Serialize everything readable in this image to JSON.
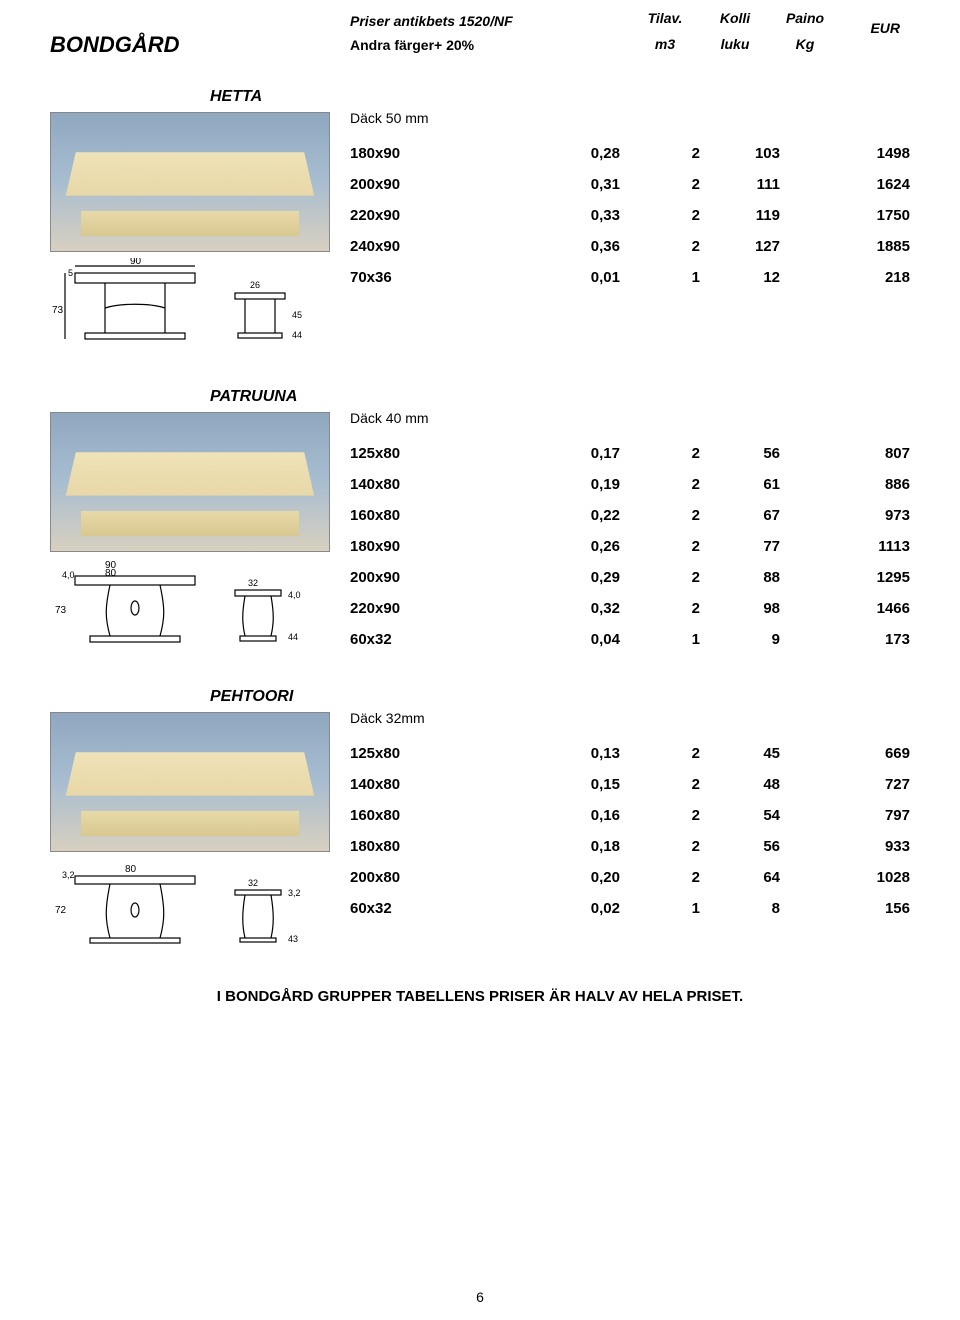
{
  "header": {
    "brand": "BONDGÅRD",
    "line1": "Priser antikbets 1520/NF",
    "line2": "Andra färger+ 20%",
    "col1a": "Tilav.",
    "col1b": "m3",
    "col2a": "Kolli",
    "col2b": "luku",
    "col3a": "Paino",
    "col3b": "Kg",
    "eur": "EUR"
  },
  "sections": [
    {
      "name": "HETTA",
      "subhead": "Däck 50 mm",
      "diagram_labels": {
        "w": "90",
        "s": "5",
        "h": "73",
        "p": "26",
        "q": "45",
        "r": "44"
      },
      "rows": [
        {
          "size": "180x90",
          "v1": "0,28",
          "v2": "2",
          "v3": "103",
          "v4": "1498"
        },
        {
          "size": "200x90",
          "v1": "0,31",
          "v2": "2",
          "v3": "111",
          "v4": "1624"
        },
        {
          "size": "220x90",
          "v1": "0,33",
          "v2": "2",
          "v3": "119",
          "v4": "1750"
        },
        {
          "size": "240x90",
          "v1": "0,36",
          "v2": "2",
          "v3": "127",
          "v4": "1885"
        },
        {
          "size": "70x36",
          "v1": "0,01",
          "v2": "1",
          "v3": "12",
          "v4": "218"
        }
      ]
    },
    {
      "name": "PATRUUNA",
      "subhead": "Däck 40 mm",
      "diagram_labels": {
        "w1": "90",
        "w2": "80",
        "h": "73",
        "p": "32",
        "q": "4,0",
        "r": "44",
        "s": "4,0"
      },
      "rows": [
        {
          "size": "125x80",
          "v1": "0,17",
          "v2": "2",
          "v3": "56",
          "v4": "807"
        },
        {
          "size": "140x80",
          "v1": "0,19",
          "v2": "2",
          "v3": "61",
          "v4": "886"
        },
        {
          "size": "160x80",
          "v1": "0,22",
          "v2": "2",
          "v3": "67",
          "v4": "973"
        },
        {
          "size": "180x90",
          "v1": "0,26",
          "v2": "2",
          "v3": "77",
          "v4": "1113"
        },
        {
          "size": "200x90",
          "v1": "0,29",
          "v2": "2",
          "v3": "88",
          "v4": "1295"
        },
        {
          "size": "220x90",
          "v1": "0,32",
          "v2": "2",
          "v3": "98",
          "v4": "1466"
        },
        {
          "size": "60x32",
          "v1": "0,04",
          "v2": "1",
          "v3": "9",
          "v4": "173"
        }
      ]
    },
    {
      "name": "PEHTOORI",
      "subhead": "Däck 32mm",
      "diagram_labels": {
        "w": "80",
        "h": "72",
        "p": "32",
        "q": "3,2",
        "r": "43",
        "s": "3,2"
      },
      "rows": [
        {
          "size": "125x80",
          "v1": "0,13",
          "v2": "2",
          "v3": "45",
          "v4": "669"
        },
        {
          "size": "140x80",
          "v1": "0,15",
          "v2": "2",
          "v3": "48",
          "v4": "727"
        },
        {
          "size": "160x80",
          "v1": "0,16",
          "v2": "2",
          "v3": "54",
          "v4": "797"
        },
        {
          "size": "180x80",
          "v1": "0,18",
          "v2": "2",
          "v3": "56",
          "v4": "933"
        },
        {
          "size": "200x80",
          "v1": "0,20",
          "v2": "2",
          "v3": "64",
          "v4": "1028"
        },
        {
          "size": "60x32",
          "v1": "0,02",
          "v2": "1",
          "v3": "8",
          "v4": "156"
        }
      ]
    }
  ],
  "footer": "I BONDGÅRD GRUPPER TABELLENS PRISER ÄR HALV AV HELA PRISET.",
  "pagenum": "6"
}
